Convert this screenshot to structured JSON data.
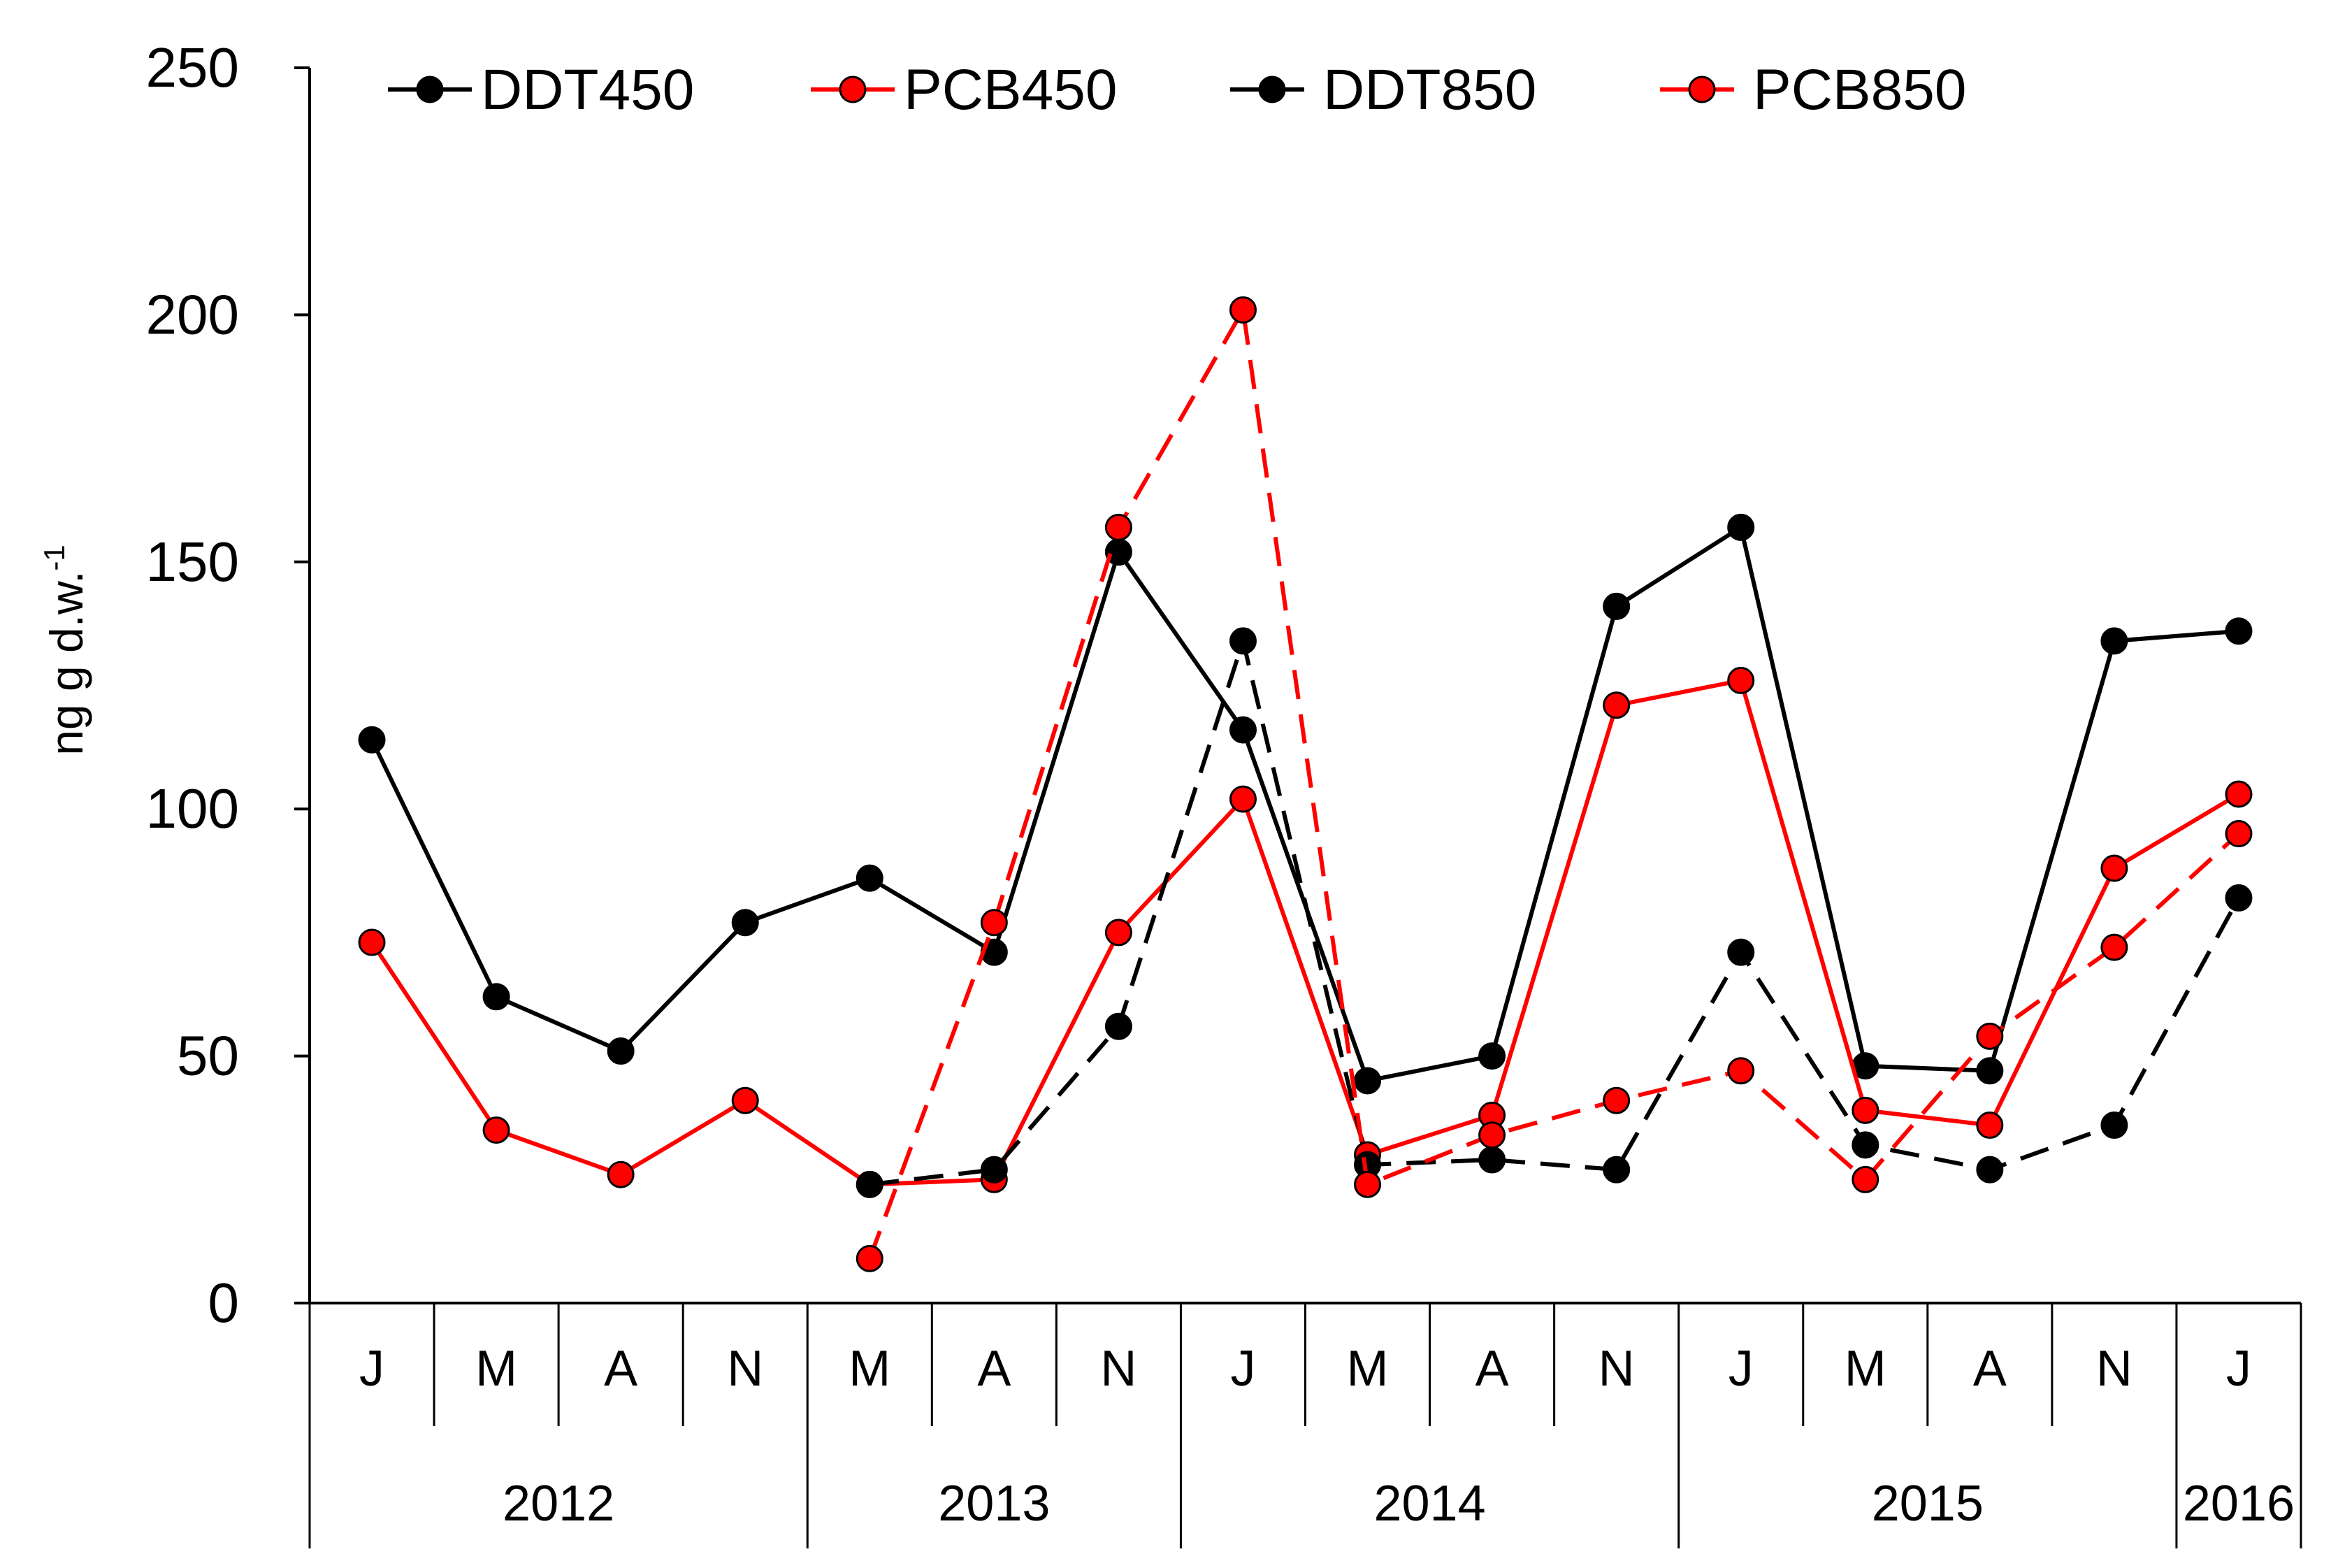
{
  "chart_data": {
    "type": "line",
    "title": "",
    "xlabel": "",
    "ylabel": "ng g d.w.",
    "ylabel_superscript": "-1",
    "ylim": [
      0,
      250
    ],
    "yticks": [
      0,
      50,
      100,
      150,
      200,
      250
    ],
    "categories": [
      "J",
      "M",
      "A",
      "N",
      "M",
      "A",
      "N",
      "J",
      "M",
      "A",
      "N",
      "J",
      "M",
      "A",
      "N",
      "J"
    ],
    "groups": [
      {
        "label": "2012",
        "start": 0,
        "end": 3
      },
      {
        "label": "2013",
        "start": 4,
        "end": 6
      },
      {
        "label": "2014",
        "start": 7,
        "end": 10
      },
      {
        "label": "2015",
        "start": 11,
        "end": 14
      },
      {
        "label": "2016",
        "start": 15,
        "end": 15
      }
    ],
    "legend_position": "top",
    "series": [
      {
        "name": "DDT450",
        "color": "#000000",
        "dashed": false,
        "values": [
          114,
          62,
          51,
          77,
          86,
          71,
          152,
          116,
          45,
          50,
          141,
          157,
          48,
          47,
          134,
          136
        ]
      },
      {
        "name": "PCB450",
        "color": "#ff0000",
        "dashed": false,
        "values": [
          73,
          35,
          26,
          41,
          24,
          25,
          75,
          102,
          30,
          38,
          121,
          126,
          39,
          36,
          88,
          103
        ]
      },
      {
        "name": "DDT850",
        "color": "#000000",
        "dashed": true,
        "values": [
          null,
          null,
          null,
          null,
          24,
          27,
          56,
          134,
          28,
          29,
          27,
          71,
          32,
          27,
          36,
          82
        ]
      },
      {
        "name": "PCB850",
        "color": "#ff0000",
        "dashed": true,
        "values": [
          null,
          null,
          null,
          null,
          9,
          77,
          157,
          201,
          24,
          34,
          41,
          47,
          25,
          54,
          72,
          95
        ]
      }
    ]
  }
}
